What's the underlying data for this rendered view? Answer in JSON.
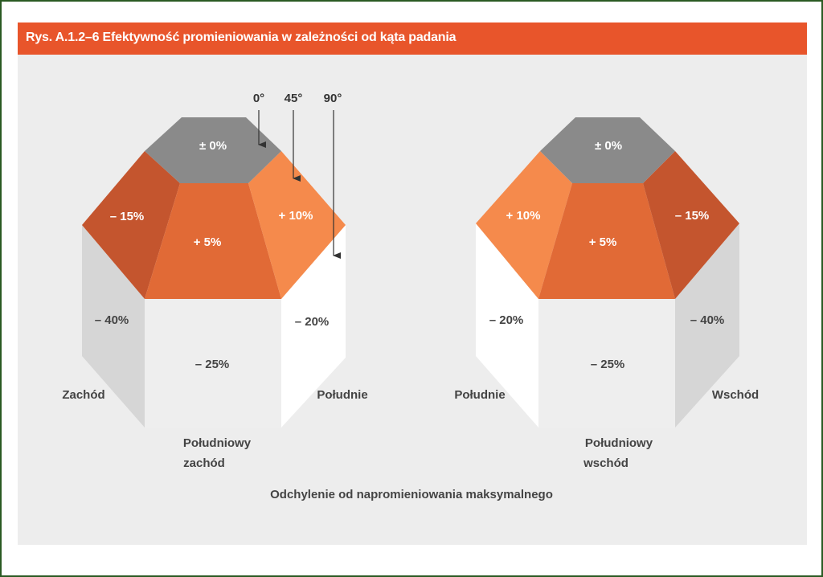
{
  "figure": {
    "title": "Rys. A.1.2–6   Efektywność promieniowania w zależności od kąta padania",
    "caption": "Odchylenie od napromieniowania maksymalnego",
    "colors": {
      "top": "#8a8a8a",
      "light_orange": "#f58a4c",
      "mid_orange": "#e16a36",
      "dark_orange": "#c4552e",
      "side_gray": "#d6d6d6",
      "front": "#eeeeee",
      "white_side": "#ffffff",
      "title_bar": "#e8552b"
    }
  },
  "angles": {
    "a0": "0°",
    "a45": "45°",
    "a90": "90°"
  },
  "left_prism": {
    "top": "± 0%",
    "upper_left": "– 15%",
    "upper_center": "+ 5%",
    "upper_right": "+ 10%",
    "side_left": "– 40%",
    "side_front": "– 25%",
    "side_right": "– 20%",
    "dir_left": "Zachód",
    "dir_front_1": "Południowy",
    "dir_front_2": "zachód",
    "dir_right": "Południe"
  },
  "right_prism": {
    "top": "± 0%",
    "upper_left": "+ 10%",
    "upper_center": "+ 5%",
    "upper_right": "– 15%",
    "side_left": "– 20%",
    "side_front": "– 25%",
    "side_right": "– 40%",
    "dir_left": "Południe",
    "dir_front_1": "Południowy",
    "dir_front_2": "wschód",
    "dir_right": "Wschód"
  }
}
